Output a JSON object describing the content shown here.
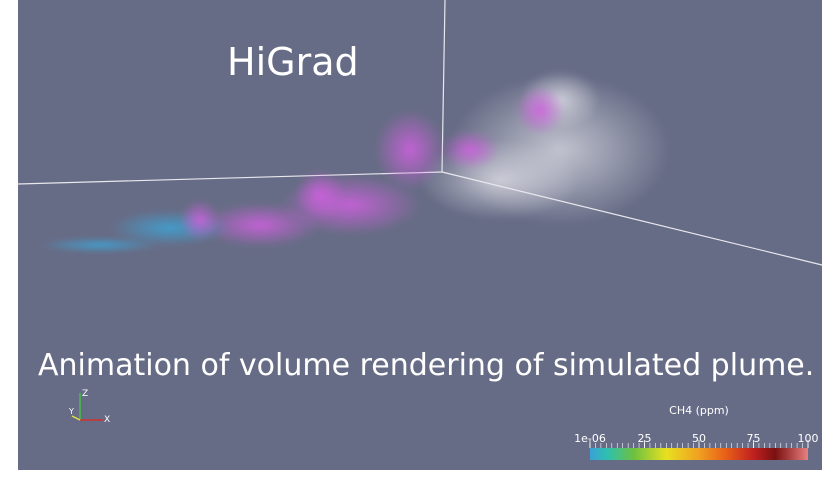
{
  "title": "HiGrad",
  "caption": "Animation of volume rendering of simulated plume.",
  "axes": {
    "z": "Z",
    "y": "Y",
    "x": "X"
  },
  "colorbar": {
    "title": "CH4 (ppm)",
    "range": [
      1e-06,
      100
    ],
    "ticks": [
      {
        "value": 1e-06,
        "label": "1e-06"
      },
      25,
      50,
      75,
      100
    ]
  }
}
